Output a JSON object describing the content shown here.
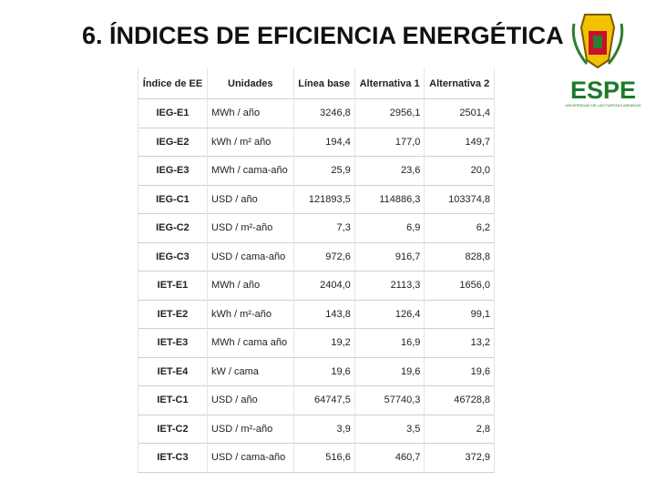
{
  "header": {
    "title": "6. ÍNDICES DE EFICIENCIA ENERGÉTICA"
  },
  "logo": {
    "name": "ESPE",
    "subtitle": "UNIVERSIDAD DE LAS FUERZAS ARMADAS"
  },
  "table": {
    "columns": [
      "Índice de EE",
      "Unidades",
      "Línea base",
      "Alternativa 1",
      "Alternativa 2"
    ],
    "rows": [
      [
        "IEG-E1",
        "MWh / año",
        "3246,8",
        "2956,1",
        "2501,4"
      ],
      [
        "IEG-E2",
        "kWh / m² año",
        "194,4",
        "177,0",
        "149,7"
      ],
      [
        "IEG-E3",
        "MWh / cama-año",
        "25,9",
        "23,6",
        "20,0"
      ],
      [
        "IEG-C1",
        "USD / año",
        "121893,5",
        "114886,3",
        "103374,8"
      ],
      [
        "IEG-C2",
        "USD / m²-año",
        "7,3",
        "6,9",
        "6,2"
      ],
      [
        "IEG-C3",
        "USD / cama-año",
        "972,6",
        "916,7",
        "828,8"
      ],
      [
        "IET-E1",
        "MWh / año",
        "2404,0",
        "2113,3",
        "1656,0"
      ],
      [
        "IET-E2",
        "kWh / m²-año",
        "143,8",
        "126,4",
        "99,1"
      ],
      [
        "IET-E3",
        "MWh / cama año",
        "19,2",
        "16,9",
        "13,2"
      ],
      [
        "IET-E4",
        "kW / cama",
        "19,6",
        "19,6",
        "19,6"
      ],
      [
        "IET-C1",
        "USD / año",
        "64747,5",
        "57740,3",
        "46728,8"
      ],
      [
        "IET-C2",
        "USD / m²-año",
        "3,9",
        "3,5",
        "2,8"
      ],
      [
        "IET-C3",
        "USD / cama-año",
        "516,6",
        "460,7",
        "372,9"
      ]
    ]
  }
}
